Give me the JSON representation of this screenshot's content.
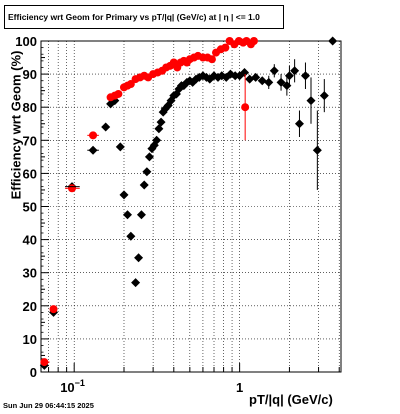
{
  "title": "Efficiency wrt Geom for Primary vs pT/|q| (GeV/c) at |  η  | <= 1.0",
  "ylabel": "Efficiency wrt Geom (%)",
  "xlabel": "pT/|q| (GeV/c)",
  "timestamp": "Sun Jun 29 06:44:15 2025",
  "chart_data": {
    "type": "scatter",
    "title": "Efficiency wrt Geom for Primary vs pT/|q| (GeV/c) at |  η  | <= 1.0",
    "xlabel": "pT/|q| (GeV/c)",
    "ylabel": "Efficiency wrt Geom (%)",
    "x_scale": "log",
    "xlim": [
      0.063,
      4.1
    ],
    "ylim": [
      0,
      100
    ],
    "x_tick_labels": [
      "10^-1",
      "1"
    ],
    "y_tick_labels": [
      "0",
      "10",
      "20",
      "30",
      "40",
      "50",
      "60",
      "70",
      "80",
      "90",
      "100"
    ],
    "grid": true,
    "colors": {
      "series_black": "#000000",
      "series_red": "#ff0000"
    },
    "series": [
      {
        "marker": "diamond",
        "color": "#000000",
        "points": [
          [
            0.066,
            2
          ],
          [
            0.075,
            18
          ],
          [
            0.097,
            56
          ],
          [
            0.13,
            67
          ],
          [
            0.155,
            74
          ],
          [
            0.166,
            81
          ],
          [
            0.176,
            82
          ],
          [
            0.19,
            68
          ],
          [
            0.2,
            53.5
          ],
          [
            0.21,
            47.5
          ],
          [
            0.22,
            41
          ],
          [
            0.235,
            27
          ],
          [
            0.245,
            34.5
          ],
          [
            0.255,
            47.5
          ],
          [
            0.265,
            56.5
          ],
          [
            0.275,
            60.5
          ],
          [
            0.285,
            65
          ],
          [
            0.295,
            67.5
          ],
          [
            0.305,
            68.5
          ],
          [
            0.315,
            70
          ],
          [
            0.325,
            73.5
          ],
          [
            0.335,
            75.5
          ],
          [
            0.345,
            78.5
          ],
          [
            0.355,
            79.5
          ],
          [
            0.37,
            80.5
          ],
          [
            0.385,
            82
          ],
          [
            0.4,
            83.5
          ],
          [
            0.415,
            84
          ],
          [
            0.43,
            85.5
          ],
          [
            0.445,
            86.5
          ],
          [
            0.46,
            86.5
          ],
          [
            0.48,
            87.5
          ],
          [
            0.5,
            88
          ],
          [
            0.52,
            87.5
          ],
          [
            0.545,
            88.5
          ],
          [
            0.57,
            89
          ],
          [
            0.6,
            89.5
          ],
          [
            0.63,
            89
          ],
          [
            0.66,
            88.5
          ],
          [
            0.7,
            89.5
          ],
          [
            0.74,
            89
          ],
          [
            0.78,
            89.5
          ],
          [
            0.83,
            89
          ],
          [
            0.88,
            90
          ],
          [
            0.94,
            89.5
          ],
          [
            1.0,
            89.5
          ],
          [
            1.07,
            90.5
          ],
          [
            1.15,
            88.5
          ],
          [
            1.25,
            89
          ],
          [
            1.37,
            88
          ],
          [
            1.5,
            87.5
          ],
          [
            1.62,
            91
          ],
          [
            1.78,
            87.5
          ],
          [
            1.93,
            86.5
          ],
          [
            2.0,
            89.5
          ],
          [
            2.15,
            91
          ],
          [
            2.3,
            75
          ],
          [
            2.5,
            89.5
          ],
          [
            2.7,
            82
          ],
          [
            2.95,
            67
          ],
          [
            3.25,
            83.5
          ],
          [
            3.65,
            100
          ]
        ],
        "y_err": [
          0,
          0,
          0,
          0,
          0,
          0,
          0,
          0,
          0,
          0,
          0,
          0,
          0,
          0,
          0,
          0,
          0,
          0,
          0,
          0,
          0,
          0,
          0,
          0,
          0,
          0,
          0,
          0,
          0,
          0,
          0,
          0,
          0,
          0,
          0,
          0,
          0,
          0,
          0,
          0,
          0,
          0,
          0,
          0,
          0,
          0,
          0,
          0,
          0,
          0,
          2,
          2,
          2.5,
          3,
          3,
          3.5,
          4,
          4,
          7,
          12,
          5,
          0
        ]
      },
      {
        "marker": "circle",
        "color": "#ff0000",
        "points": [
          [
            0.066,
            3
          ],
          [
            0.075,
            19
          ],
          [
            0.097,
            55.5
          ],
          [
            0.13,
            71.5
          ],
          [
            0.166,
            83
          ],
          [
            0.176,
            83.5
          ],
          [
            0.185,
            84
          ],
          [
            0.2,
            86
          ],
          [
            0.21,
            86.5
          ],
          [
            0.22,
            87
          ],
          [
            0.235,
            88.5
          ],
          [
            0.25,
            89
          ],
          [
            0.265,
            89.5
          ],
          [
            0.28,
            89
          ],
          [
            0.3,
            90
          ],
          [
            0.32,
            90.5
          ],
          [
            0.34,
            91
          ],
          [
            0.36,
            92
          ],
          [
            0.38,
            92.5
          ],
          [
            0.4,
            93.5
          ],
          [
            0.42,
            92
          ],
          [
            0.44,
            93.5
          ],
          [
            0.46,
            94
          ],
          [
            0.48,
            93.5
          ],
          [
            0.5,
            94.5
          ],
          [
            0.53,
            95
          ],
          [
            0.56,
            95.5
          ],
          [
            0.6,
            95
          ],
          [
            0.64,
            95
          ],
          [
            0.68,
            94.5
          ],
          [
            0.72,
            96.5
          ],
          [
            0.77,
            97.5
          ],
          [
            0.82,
            98
          ],
          [
            0.87,
            100
          ],
          [
            0.93,
            99
          ],
          [
            0.99,
            100
          ],
          [
            1.05,
            99.5
          ],
          [
            1.1,
            100
          ],
          [
            1.17,
            99
          ],
          [
            1.22,
            100
          ],
          [
            1.08,
            80
          ]
        ],
        "y_err": [
          0,
          0,
          0,
          0,
          0,
          0,
          0,
          0,
          0,
          0,
          0,
          0,
          0,
          0,
          0,
          0,
          0,
          0,
          0,
          0,
          0,
          0,
          0,
          0,
          0,
          0,
          0,
          0,
          0,
          0,
          0,
          0,
          1,
          1,
          1,
          1,
          1,
          1,
          1,
          1,
          10
        ]
      }
    ]
  }
}
